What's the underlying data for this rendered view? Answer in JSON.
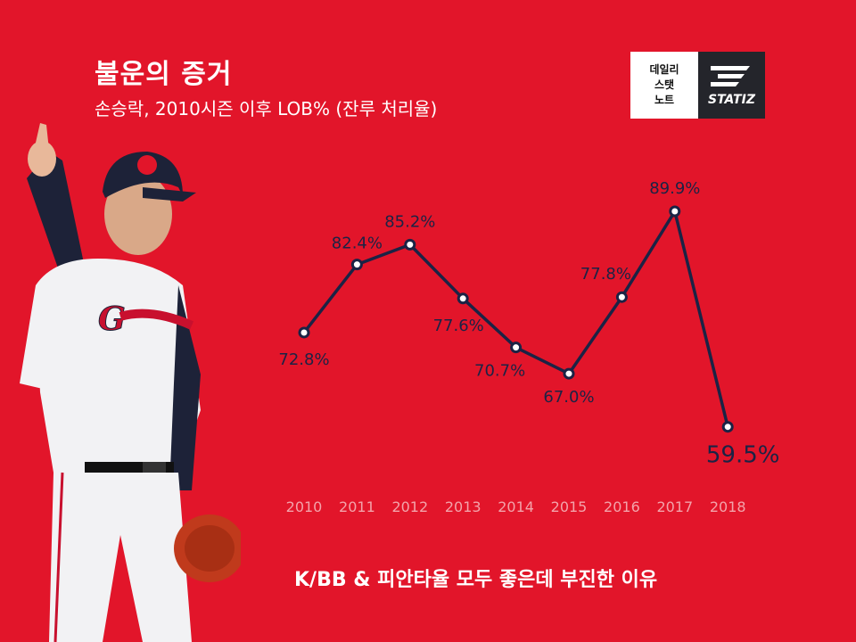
{
  "header": {
    "title": "불운의 증거",
    "subtitle": "손승락, 2010시즌 이후 LOB% (잔루 처리율)"
  },
  "logo": {
    "line1": "데일리",
    "line2": "스탯",
    "line3": "노트",
    "brand": "STATIZ"
  },
  "caption": "K/BB & 피안타율 모두 좋은데 부진한 이유",
  "colors": {
    "background": "#e2152a",
    "line": "#1b2345",
    "text": "#ffffff"
  },
  "chart_data": {
    "type": "line",
    "categories": [
      "2010",
      "2011",
      "2012",
      "2013",
      "2014",
      "2015",
      "2016",
      "2017",
      "2018"
    ],
    "values": [
      72.8,
      82.4,
      85.2,
      77.6,
      70.7,
      67.0,
      77.8,
      89.9,
      59.5
    ],
    "labels": [
      "72.8%",
      "82.4%",
      "85.2%",
      "77.6%",
      "70.7%",
      "67.0%",
      "77.8%",
      "89.9%",
      "59.5%"
    ],
    "title": "",
    "xlabel": "",
    "ylabel": "",
    "grid": false,
    "legend": "none"
  }
}
